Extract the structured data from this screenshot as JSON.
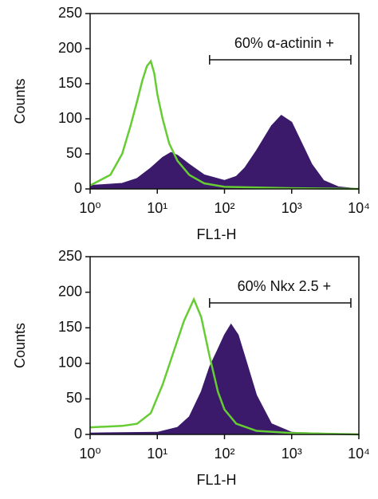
{
  "chart_data": [
    {
      "type": "line",
      "x_label": "FL1-H",
      "y_label": "Counts",
      "log_x": true,
      "xlim": [
        1,
        10000
      ],
      "xticks": [
        {
          "value": 1,
          "label": "10⁰"
        },
        {
          "value": 10,
          "label": "10¹"
        },
        {
          "value": 100,
          "label": "10²"
        },
        {
          "value": 1000,
          "label": "10³"
        },
        {
          "value": 10000,
          "label": "10⁴"
        }
      ],
      "ylim": [
        0,
        250
      ],
      "yticks": [
        0,
        50,
        100,
        150,
        200,
        250
      ],
      "gate": {
        "label": "60% α-actinin +",
        "range": [
          60,
          7600
        ]
      },
      "series": [
        {
          "color": "#3b1a6b",
          "fill": true,
          "x": [
            1,
            3,
            5,
            8,
            12,
            16,
            20,
            30,
            50,
            100,
            150,
            200,
            300,
            500,
            700,
            1000,
            1500,
            2000,
            3000,
            5000,
            10000
          ],
          "values": [
            5,
            8,
            15,
            30,
            45,
            52,
            48,
            35,
            20,
            12,
            18,
            30,
            55,
            90,
            105,
            95,
            60,
            35,
            12,
            3,
            0
          ]
        },
        {
          "color": "#66cc33",
          "fill": false,
          "x": [
            1,
            2,
            3,
            4,
            5,
            6,
            7,
            8,
            9,
            10,
            12,
            15,
            20,
            30,
            50,
            100,
            1000,
            10000
          ],
          "values": [
            5,
            20,
            50,
            90,
            125,
            155,
            175,
            182,
            165,
            135,
            100,
            65,
            40,
            20,
            8,
            3,
            1,
            0
          ]
        }
      ]
    },
    {
      "type": "line",
      "x_label": "FL1-H",
      "y_label": "Counts",
      "log_x": true,
      "xlim": [
        1,
        10000
      ],
      "xticks": [
        {
          "value": 1,
          "label": "10⁰"
        },
        {
          "value": 10,
          "label": "10¹"
        },
        {
          "value": 100,
          "label": "10²"
        },
        {
          "value": 1000,
          "label": "10³"
        },
        {
          "value": 10000,
          "label": "10⁴"
        }
      ],
      "ylim": [
        0,
        250
      ],
      "yticks": [
        0,
        50,
        100,
        150,
        200,
        250
      ],
      "gate": {
        "label": "60% Nkx 2.5 +",
        "range": [
          60,
          7600
        ]
      },
      "series": [
        {
          "color": "#3b1a6b",
          "fill": true,
          "x": [
            1,
            10,
            20,
            30,
            45,
            60,
            80,
            100,
            125,
            160,
            200,
            300,
            500,
            1000,
            10000
          ],
          "values": [
            2,
            3,
            10,
            25,
            60,
            95,
            120,
            140,
            155,
            140,
            110,
            55,
            15,
            3,
            0
          ]
        },
        {
          "color": "#66cc33",
          "fill": false,
          "x": [
            1,
            3,
            5,
            8,
            12,
            18,
            25,
            35,
            45,
            60,
            80,
            100,
            150,
            300,
            1000,
            10000
          ],
          "values": [
            10,
            12,
            15,
            30,
            70,
            120,
            160,
            190,
            165,
            110,
            60,
            35,
            15,
            5,
            2,
            0
          ]
        }
      ]
    }
  ]
}
